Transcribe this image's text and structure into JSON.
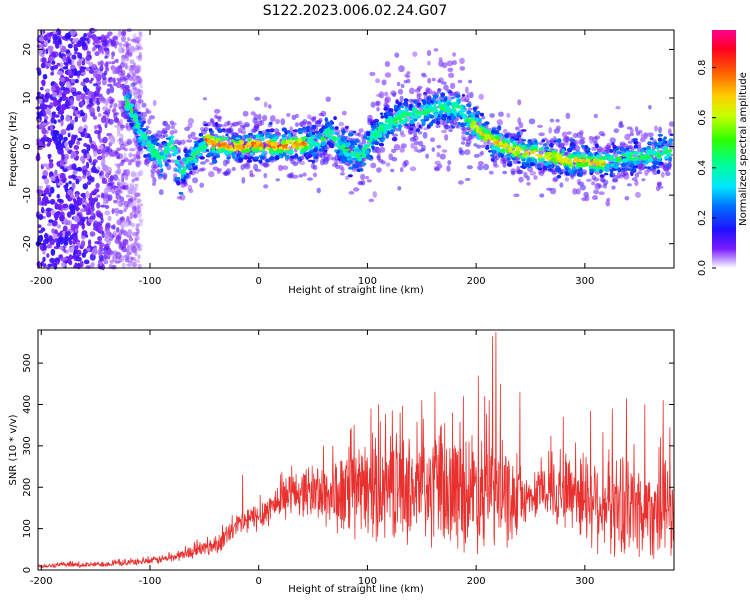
{
  "figure": {
    "title": "S122.2023.006.02.24.G07"
  },
  "chart_data": [
    {
      "type": "heatmap",
      "xlabel": "Height of straight line (km)",
      "ylabel": "Frequency (Hz)",
      "xlim": [
        -203,
        382
      ],
      "ylim": [
        -25,
        24
      ],
      "x_ticks": [
        -200,
        -100,
        0,
        100,
        200,
        300
      ],
      "y_ticks": [
        -20,
        -10,
        0,
        10,
        20
      ],
      "colorbar": {
        "label": "Normalized spectral amplitude",
        "range": [
          0,
          0.95
        ],
        "ticks": [
          0.0,
          0.2,
          0.4,
          0.6,
          0.8
        ],
        "colormap": "rainbow"
      },
      "dominant_frequency_track": [
        {
          "x": -120,
          "y": 9
        },
        {
          "x": -110,
          "y": 3
        },
        {
          "x": -100,
          "y": 0
        },
        {
          "x": -90,
          "y": -3
        },
        {
          "x": -80,
          "y": 1
        },
        {
          "x": -72,
          "y": -6
        },
        {
          "x": -65,
          "y": -3
        },
        {
          "x": -55,
          "y": -1
        },
        {
          "x": -48,
          "y": 1.5
        },
        {
          "x": -40,
          "y": 0.5
        },
        {
          "x": -20,
          "y": 0
        },
        {
          "x": 0,
          "y": 0.5
        },
        {
          "x": 20,
          "y": 0
        },
        {
          "x": 40,
          "y": 0.5
        },
        {
          "x": 55,
          "y": 1
        },
        {
          "x": 65,
          "y": 3
        },
        {
          "x": 75,
          "y": 0
        },
        {
          "x": 85,
          "y": -1
        },
        {
          "x": 95,
          "y": -2
        },
        {
          "x": 105,
          "y": 2
        },
        {
          "x": 115,
          "y": 4
        },
        {
          "x": 130,
          "y": 6
        },
        {
          "x": 150,
          "y": 7
        },
        {
          "x": 170,
          "y": 8
        },
        {
          "x": 185,
          "y": 8
        },
        {
          "x": 195,
          "y": 5
        },
        {
          "x": 210,
          "y": 2
        },
        {
          "x": 225,
          "y": 0
        },
        {
          "x": 240,
          "y": -1
        },
        {
          "x": 255,
          "y": -1.5
        },
        {
          "x": 270,
          "y": -2
        },
        {
          "x": 285,
          "y": -3
        },
        {
          "x": 300,
          "y": -3
        },
        {
          "x": 315,
          "y": -3.5
        },
        {
          "x": 330,
          "y": -2.5
        },
        {
          "x": 345,
          "y": -2
        },
        {
          "x": 360,
          "y": -2
        },
        {
          "x": 375,
          "y": -1
        }
      ]
    },
    {
      "type": "line",
      "xlabel": "Height of straight line (km)",
      "ylabel": "SNR (10 * v/v)",
      "xlim": [
        -203,
        382
      ],
      "ylim": [
        0,
        580
      ],
      "x_ticks": [
        -200,
        -100,
        0,
        100,
        200,
        300
      ],
      "y_ticks": [
        0,
        100,
        200,
        300,
        400,
        500
      ],
      "line_color": "#e8312f",
      "series": [
        {
          "x": [
            -200,
            -180,
            -160,
            -140,
            -120,
            -100,
            -80,
            -60,
            -40,
            -30,
            -20,
            -10,
            0,
            10,
            20,
            30,
            40,
            50,
            60,
            70,
            80,
            90,
            100,
            110,
            120,
            130,
            140,
            150,
            160,
            170,
            180,
            190,
            200,
            210,
            220,
            230,
            240,
            250,
            260,
            270,
            280,
            290,
            300,
            310,
            320,
            330,
            340,
            350,
            360,
            370,
            380
          ],
          "y": [
            10,
            12,
            12,
            15,
            18,
            22,
            30,
            45,
            60,
            80,
            105,
            120,
            130,
            150,
            170,
            185,
            190,
            190,
            185,
            180,
            180,
            185,
            190,
            195,
            200,
            200,
            195,
            190,
            190,
            190,
            190,
            195,
            195,
            195,
            180,
            170,
            170,
            175,
            185,
            195,
            195,
            190,
            180,
            170,
            160,
            155,
            150,
            150,
            150,
            145,
            140
          ]
        }
      ],
      "y_spread": [
        {
          "x": -200,
          "v": 5
        },
        {
          "x": -100,
          "v": 8
        },
        {
          "x": -60,
          "v": 15
        },
        {
          "x": -30,
          "v": 25
        },
        {
          "x": 0,
          "v": 35
        },
        {
          "x": 40,
          "v": 55
        },
        {
          "x": 80,
          "v": 100
        },
        {
          "x": 120,
          "v": 120
        },
        {
          "x": 160,
          "v": 130
        },
        {
          "x": 210,
          "v": 140
        },
        {
          "x": 230,
          "v": 110
        },
        {
          "x": 250,
          "v": 40
        },
        {
          "x": 270,
          "v": 80
        },
        {
          "x": 300,
          "v": 110
        },
        {
          "x": 340,
          "v": 120
        },
        {
          "x": 380,
          "v": 110
        }
      ],
      "peaks": [
        {
          "x": -15,
          "y": 230
        },
        {
          "x": 68,
          "y": 300
        },
        {
          "x": 103,
          "y": 390
        },
        {
          "x": 110,
          "y": 400
        },
        {
          "x": 130,
          "y": 380
        },
        {
          "x": 150,
          "y": 410
        },
        {
          "x": 162,
          "y": 430
        },
        {
          "x": 178,
          "y": 380
        },
        {
          "x": 188,
          "y": 420
        },
        {
          "x": 202,
          "y": 470
        },
        {
          "x": 212,
          "y": 410
        },
        {
          "x": 215,
          "y": 565
        },
        {
          "x": 218,
          "y": 575
        },
        {
          "x": 222,
          "y": 450
        },
        {
          "x": 240,
          "y": 430
        },
        {
          "x": 280,
          "y": 370
        },
        {
          "x": 305,
          "y": 385
        },
        {
          "x": 325,
          "y": 390
        },
        {
          "x": 338,
          "y": 415
        },
        {
          "x": 345,
          "y": 305
        },
        {
          "x": 355,
          "y": 400
        },
        {
          "x": 372,
          "y": 410
        },
        {
          "x": 378,
          "y": 345
        }
      ]
    }
  ]
}
